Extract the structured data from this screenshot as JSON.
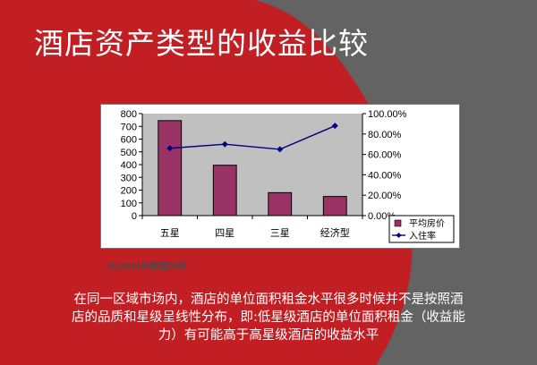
{
  "slide": {
    "title": "酒店资产类型的收益比较",
    "source_note": "以2004年数据为例",
    "body_text": "在同一区域市场内，酒店的单位面积租金水平很多时候并不是按照酒店的品质和星级呈线性分布，即:低星级酒店的单位面积租金（收益能力）有可能高于高星级酒店的收益水平",
    "colors": {
      "background_red": "#c21f24",
      "background_grey": "#636363",
      "title_text": "#ffffff"
    }
  },
  "chart_data": {
    "type": "bar",
    "categories": [
      "五星",
      "四星",
      "三星",
      "经济型"
    ],
    "series": [
      {
        "name": "平均房价",
        "kind": "bar",
        "axis": "left",
        "color": "#993366",
        "values": [
          745,
          395,
          180,
          150
        ]
      },
      {
        "name": "入住率",
        "kind": "line",
        "axis": "right",
        "color": "#000080",
        "marker": "diamond",
        "values": [
          66,
          70,
          65,
          88
        ]
      }
    ],
    "y_left": {
      "min": 0,
      "max": 800,
      "step": 100,
      "ticks": [
        "0",
        "100",
        "200",
        "300",
        "400",
        "500",
        "600",
        "700",
        "800"
      ]
    },
    "y_right": {
      "min": 0,
      "max": 100,
      "step": 20,
      "ticks": [
        "0.00%",
        "20.00%",
        "40.00%",
        "60.00%",
        "80.00%",
        "100.00%"
      ]
    },
    "plot_background": "#c0c0c0",
    "grid": false,
    "legend_position": "bottom-right"
  }
}
